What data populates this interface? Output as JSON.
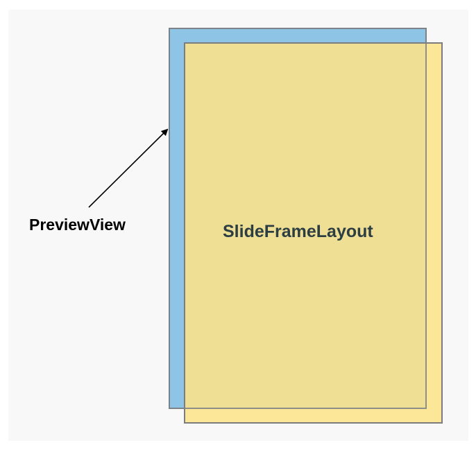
{
  "diagram": {
    "preview_view_label": "PreviewView",
    "slide_frame_layout_label": "SlideFrameLayout",
    "colors": {
      "preview_view_fill": "#8ec4e6",
      "slide_frame_fill": "#fde38a",
      "border": "#7d8388",
      "background": "#f7f8f7",
      "slide_label_color": "#2c3e42"
    }
  }
}
